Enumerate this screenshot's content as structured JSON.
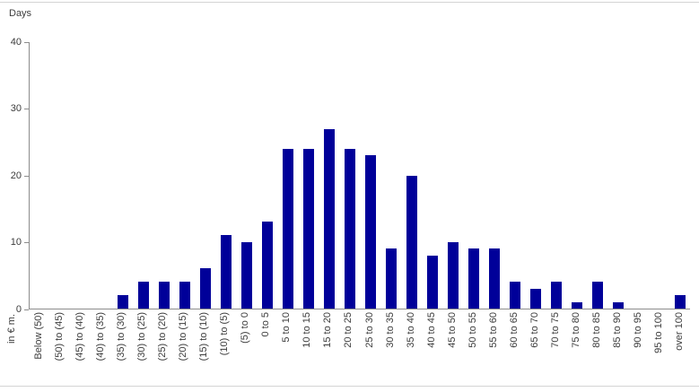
{
  "chart_data": {
    "type": "bar",
    "title": "Days",
    "ylabel": "Days",
    "xlabel_unit": "in € m.",
    "ylim": [
      0,
      40
    ],
    "yticks": [
      0,
      10,
      20,
      30,
      40
    ],
    "grid": false,
    "legend": false,
    "bar_color": "#000099",
    "categories": [
      "Below (50)",
      "(50) to (45)",
      "(45) to (40)",
      "(40) to (35)",
      "(35) to (30)",
      "(30) to (25)",
      "(25) to (20)",
      "(20) to (15)",
      "(15) to (10)",
      "(10) to (5)",
      "(5) to 0",
      "0 to 5",
      "5 to 10",
      "10 to 15",
      "15 to 20",
      "20 to 25",
      "25 to 30",
      "30 to 35",
      "35 to 40",
      "40 to 45",
      "45 to 50",
      "50 to 55",
      "55 to 60",
      "60 to 65",
      "65 to 70",
      "70 to 75",
      "75 to 80",
      "80 to 85",
      "85 to 90",
      "90 to 95",
      "95 to 100",
      "over 100"
    ],
    "values": [
      0,
      0,
      0,
      0,
      2,
      4,
      4,
      4,
      6,
      11,
      10,
      13,
      24,
      24,
      27,
      24,
      23,
      9,
      20,
      8,
      10,
      9,
      9,
      4,
      3,
      4,
      1,
      4,
      1,
      0,
      0,
      2
    ]
  }
}
